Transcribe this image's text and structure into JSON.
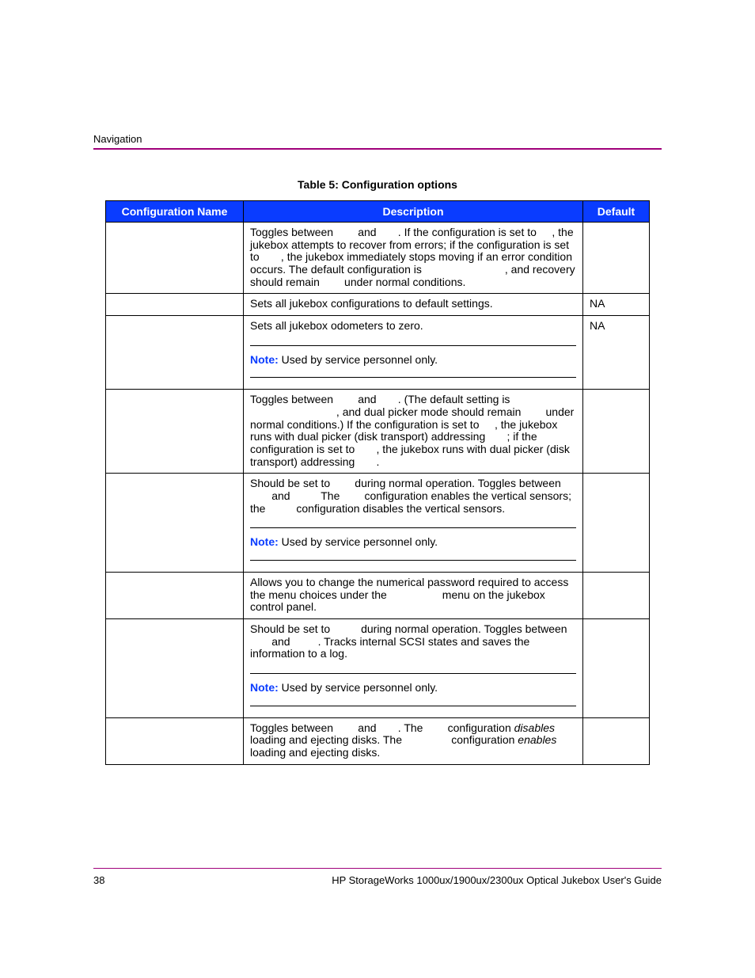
{
  "header": {
    "section": "Navigation"
  },
  "caption": "Table 5:  Configuration options",
  "columns": [
    "Configuration Name",
    "Description",
    "Default"
  ],
  "rows": [
    {
      "desc": {
        "html": "Toggles between <span class='gap'>      </span> and <span class='gap'>      </span>. If the configuration is set to <span class='gap'>    </span>, the jukebox attempts to recover from errors; if the configuration is set to <span class='gap'>      </span>, the jukebox immediately stops moving if an error condition occurs. The default configuration is <span class='gap'>                          </span>, and recovery should remain <span class='gap'>      </span> under normal conditions."
      },
      "default": ""
    },
    {
      "desc": {
        "html": "Sets all jukebox configurations to default settings."
      },
      "default": "NA"
    },
    {
      "desc": {
        "html": "Sets all jukebox odometers to zero.",
        "note": "Used by service personnel only."
      },
      "default": "NA"
    },
    {
      "desc": {
        "html": "Toggles between <span class='gap'>      </span> and <span class='gap'>      </span>. (The default setting is <span class='gap'>                            </span>, and dual picker mode should remain <span class='gap'>      </span> under normal conditions.) If the configuration is set to <span class='gap'>    </span>, the jukebox runs with dual picker (disk transport) addressing <span class='gap'>      </span>; if the configuration is set to <span class='gap'>      </span>, the jukebox runs with dual picker (disk transport) addressing <span class='gap'>      </span>."
      },
      "default": ""
    },
    {
      "desc": {
        "html": "Should be set to <span class='gap'>      </span> during normal operation. Toggles between <span class='gap'>      </span> and <span class='gap'>        </span> The <span class='gap'>      </span> configuration enables the vertical sensors; the <span class='gap'>        </span> configuration disables the vertical sensors.",
        "note": "Used by service personnel only."
      },
      "default": ""
    },
    {
      "desc": {
        "html": "Allows you to change the numerical password required to access the menu choices under the <span class='gap'>                </span> menu on the jukebox control panel."
      },
      "default": ""
    },
    {
      "desc": {
        "html": "Should be set to <span class='gap'>        </span> during normal operation. Toggles between <span class='gap'>      </span> and <span class='gap'>        </span>. Tracks internal SCSI states and saves the information to a log.",
        "note": "Used by service personnel only."
      },
      "default": ""
    },
    {
      "desc": {
        "html": "Toggles between <span class='gap'>      </span> and <span class='gap'>      </span>. The <span class='gap'>      </span> configuration <i>disables</i> loading and ejecting disks. The <span class='gap'>              </span> configuration <i>enables</i> loading and ejecting disks."
      },
      "default": ""
    }
  ],
  "note_label": "Note:",
  "footer": {
    "page": "38",
    "title": "HP StorageWorks 1000ux/1900ux/2300ux Optical Jukebox User's Guide"
  },
  "colors": {
    "header_rule": "#a0007a",
    "table_header_bg": "#0a3cff",
    "note_label": "#0a3cff"
  }
}
